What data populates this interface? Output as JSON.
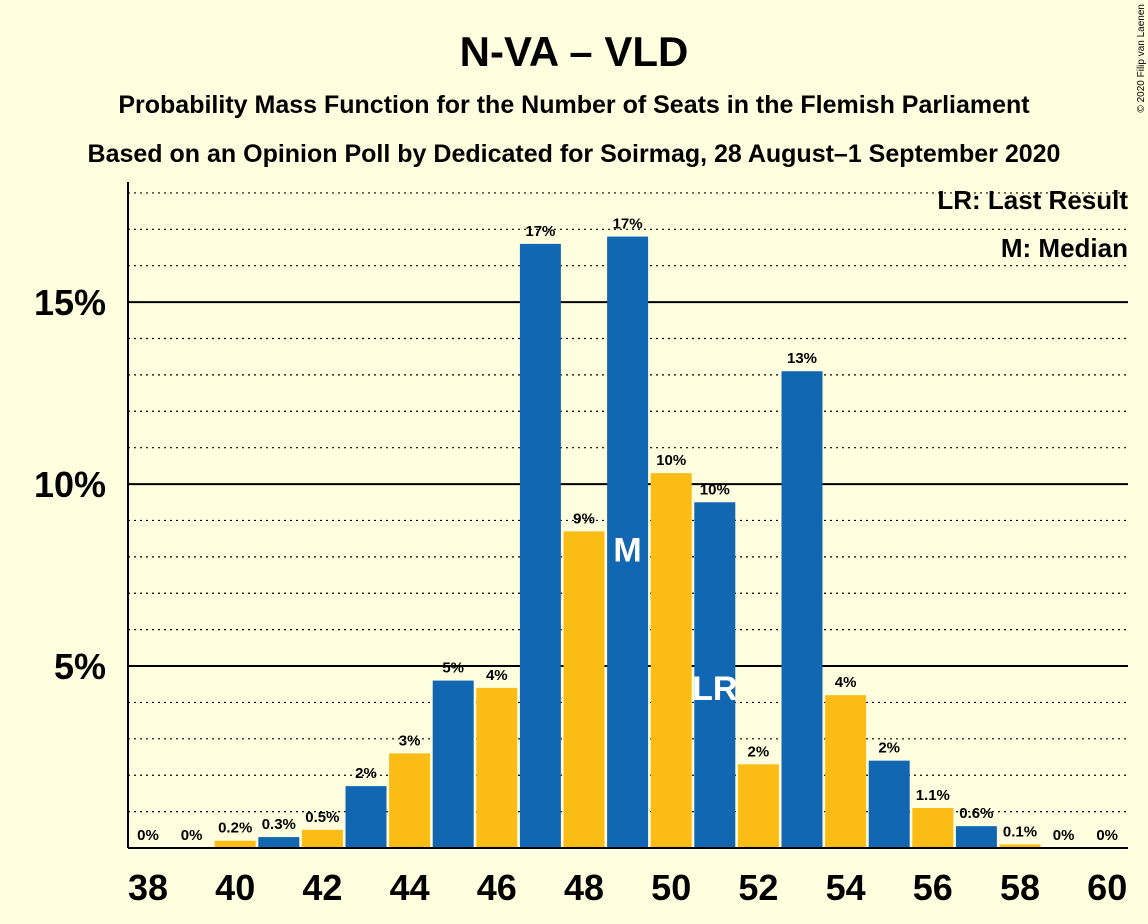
{
  "chart_data": {
    "type": "bar",
    "title": "N-VA – VLD",
    "subtitle_1": "Probability Mass Function for the Number of Seats in the Flemish Parliament",
    "subtitle_2": "Based on an Opinion Poll by Dedicated for Soirmag, 28 August–1 September 2020",
    "copyright": "© 2020 Filip van Laenen",
    "legend": {
      "last_result": "LR: Last Result",
      "median": "M: Median",
      "placement": "top-right"
    },
    "ylim": [
      0,
      18.3
    ],
    "y_ticks": [
      {
        "value": 5,
        "label": "5%"
      },
      {
        "value": 10,
        "label": "10%"
      },
      {
        "value": 15,
        "label": "15%"
      }
    ],
    "grid": {
      "major_every": 5,
      "minor_every": 1,
      "minor_style": "dotted"
    },
    "x_ticks": [
      "38",
      "40",
      "42",
      "44",
      "46",
      "48",
      "50",
      "52",
      "54",
      "56",
      "58",
      "60"
    ],
    "colors": {
      "blue": "#1267B3",
      "yellow": "#FBBC16",
      "background": "#FFFFE0"
    },
    "bars": [
      {
        "seats": 38,
        "value": 0,
        "label": "0%",
        "color": "blue"
      },
      {
        "seats": 39,
        "value": 0,
        "label": "0%",
        "color": "yellow"
      },
      {
        "seats": 40,
        "value": 0.2,
        "label": "0.2%",
        "color": "yellow"
      },
      {
        "seats": 41,
        "value": 0.3,
        "label": "0.3%",
        "color": "blue"
      },
      {
        "seats": 42,
        "value": 0.5,
        "label": "0.5%",
        "color": "yellow"
      },
      {
        "seats": 43,
        "value": 1.7,
        "label": "2%",
        "color": "blue"
      },
      {
        "seats": 44,
        "value": 2.6,
        "label": "3%",
        "color": "yellow"
      },
      {
        "seats": 45,
        "value": 4.6,
        "label": "5%",
        "color": "blue"
      },
      {
        "seats": 46,
        "value": 4.4,
        "label": "4%",
        "color": "yellow"
      },
      {
        "seats": 47,
        "value": 16.6,
        "label": "17%",
        "color": "blue"
      },
      {
        "seats": 48,
        "value": 8.7,
        "label": "9%",
        "color": "yellow"
      },
      {
        "seats": 49,
        "value": 16.8,
        "label": "17%",
        "color": "blue",
        "marker": "M"
      },
      {
        "seats": 50,
        "value": 10.3,
        "label": "10%",
        "color": "yellow"
      },
      {
        "seats": 51,
        "value": 9.5,
        "label": "10%",
        "color": "blue",
        "marker": "LR"
      },
      {
        "seats": 52,
        "value": 2.3,
        "label": "2%",
        "color": "yellow"
      },
      {
        "seats": 53,
        "value": 13.1,
        "label": "13%",
        "color": "blue"
      },
      {
        "seats": 54,
        "value": 4.2,
        "label": "4%",
        "color": "yellow"
      },
      {
        "seats": 55,
        "value": 2.4,
        "label": "2%",
        "color": "blue"
      },
      {
        "seats": 56,
        "value": 1.1,
        "label": "1.1%",
        "color": "yellow"
      },
      {
        "seats": 57,
        "value": 0.6,
        "label": "0.6%",
        "color": "blue"
      },
      {
        "seats": 58,
        "value": 0.1,
        "label": "0.1%",
        "color": "yellow"
      },
      {
        "seats": 59,
        "value": 0,
        "label": "0%",
        "color": "blue"
      },
      {
        "seats": 60,
        "value": 0,
        "label": "0%",
        "color": "yellow"
      }
    ]
  }
}
